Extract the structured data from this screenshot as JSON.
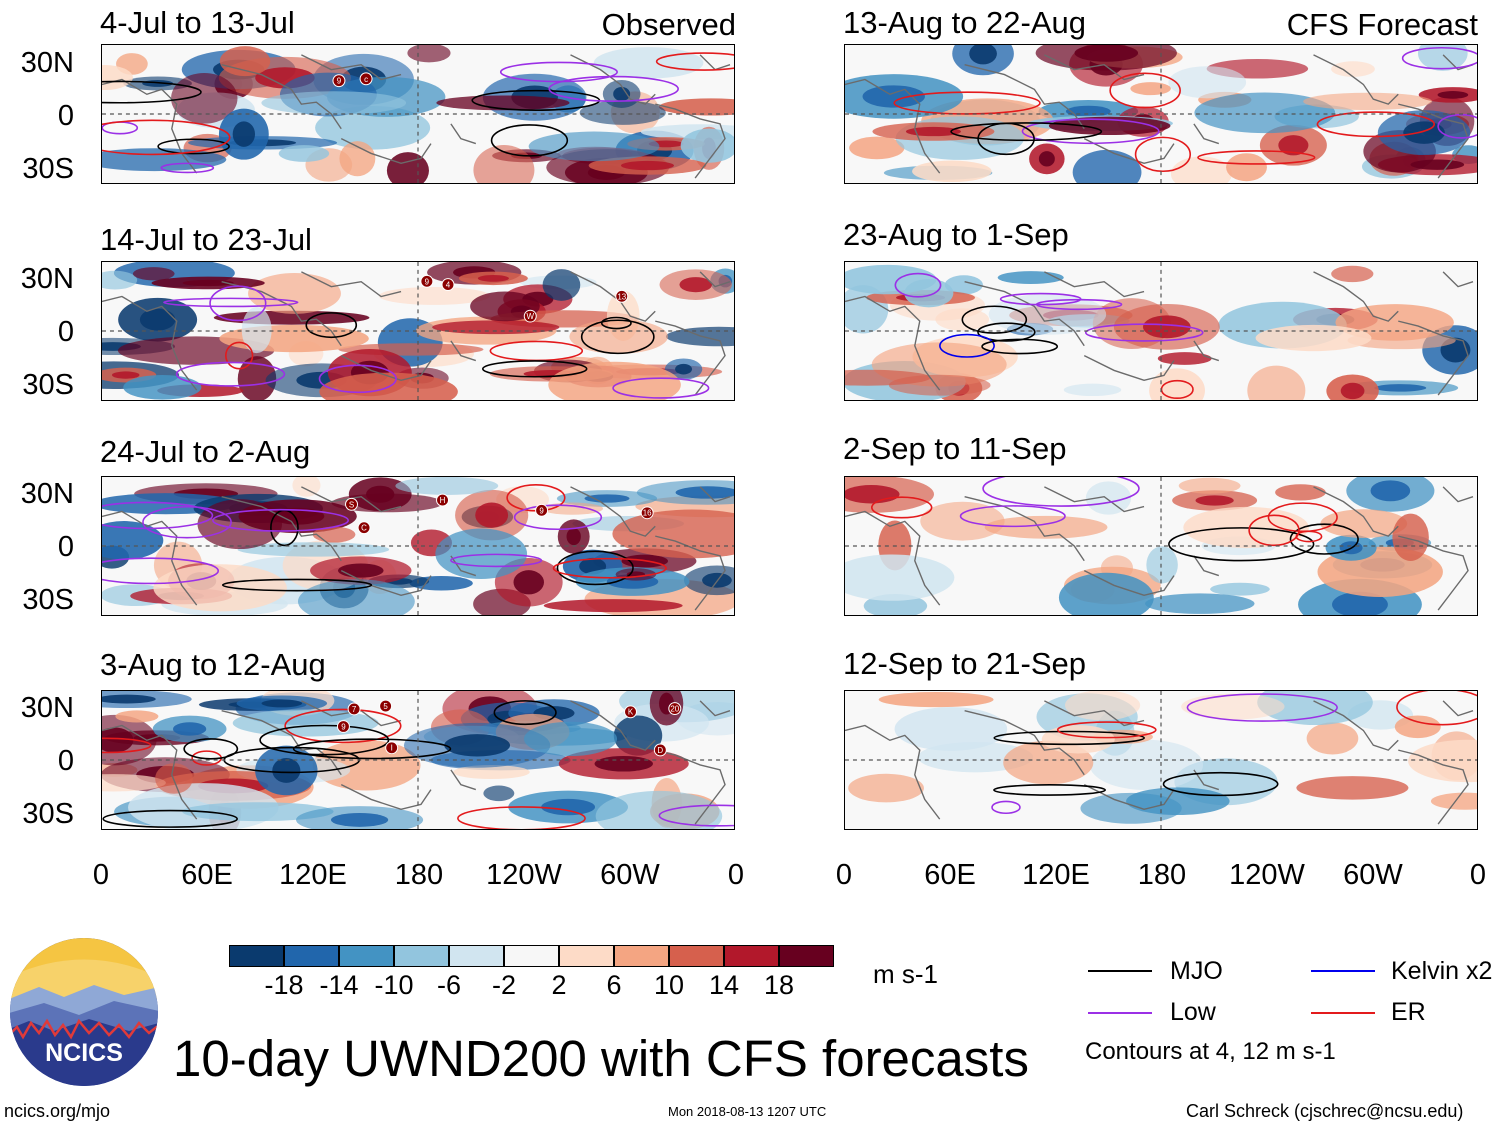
{
  "figure": {
    "title": "10-day UWND200 with CFS forecasts",
    "units": "m s-1",
    "contour_note": "Contours at 4, 12 m s-1",
    "logo_text": "NCICS",
    "footer_left": "ncics.org/mjo",
    "footer_center": "Mon 2018-08-13 1207 UTC",
    "footer_right": "Carl Schreck (cjschrec@ncsu.edu)"
  },
  "columns": {
    "left_label": "Observed",
    "right_label": "CFS Forecast"
  },
  "panels": {
    "left": [
      "4-Jul to 13-Jul",
      "14-Jul to 23-Jul",
      "24-Jul to 2-Aug",
      "3-Aug to 12-Aug"
    ],
    "right": [
      "13-Aug to 22-Aug",
      "23-Aug to 1-Sep",
      "2-Sep to 11-Sep",
      "12-Sep to 21-Sep"
    ]
  },
  "axes": {
    "lat_labels": [
      "30N",
      "0",
      "30S"
    ],
    "lon_labels": [
      "0",
      "60E",
      "120E",
      "180",
      "120W",
      "60W",
      "0"
    ]
  },
  "colorbar": {
    "colors": [
      "#0a3a6e",
      "#2166ac",
      "#4393c3",
      "#92c5de",
      "#d1e5f0",
      "#f7f7f7",
      "#fddbc7",
      "#f4a582",
      "#d6604d",
      "#b2182b",
      "#67001f"
    ],
    "ticks": [
      "-18",
      "-14",
      "-10",
      "-6",
      "-2",
      "2",
      "6",
      "10",
      "14",
      "18"
    ]
  },
  "legend": [
    {
      "label": "MJO",
      "color": "#000000"
    },
    {
      "label": "Kelvin x2",
      "color": "#0000ee"
    },
    {
      "label": "Low",
      "color": "#9b30e6"
    },
    {
      "label": "ER",
      "color": "#e31a1c"
    }
  ],
  "storm_markers": {
    "left": [
      [
        "c",
        "9"
      ],
      [
        "13",
        "4",
        "9",
        "W"
      ],
      [
        "16",
        "S",
        "9",
        "C",
        "H"
      ],
      [
        "20",
        "7",
        "5",
        "K",
        "9",
        "I",
        "D"
      ]
    ]
  }
}
